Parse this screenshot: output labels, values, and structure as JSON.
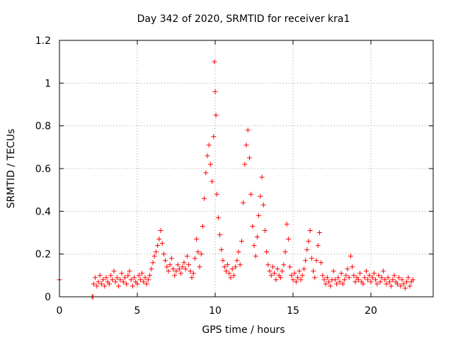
{
  "chart_data": {
    "type": "scatter",
    "title": "Day 342 of 2020, SRMTID for receiver kra1",
    "xlabel": "GPS time / hours",
    "ylabel": "SRMTID / TECUs",
    "xlim": [
      0,
      24
    ],
    "ylim": [
      0,
      1.2
    ],
    "xticks": [
      0,
      5,
      10,
      15,
      20
    ],
    "xtick_labels": [
      "0",
      "5",
      "10",
      "15",
      "20"
    ],
    "yticks": [
      0,
      0.2,
      0.4,
      0.6,
      0.8,
      1.0,
      1.2
    ],
    "ytick_labels": [
      "0",
      "0.2",
      "0.4",
      "0.6",
      "0.8",
      "1",
      "1.2"
    ],
    "grid": true,
    "marker": "+",
    "color": "#ff0000",
    "series": [
      {
        "name": "SRMTID",
        "points": [
          [
            0.0,
            0.08
          ],
          [
            2.1,
            0.0
          ],
          [
            2.15,
            0.0
          ],
          [
            2.2,
            0.06
          ],
          [
            2.3,
            0.09
          ],
          [
            2.4,
            0.05
          ],
          [
            2.5,
            0.07
          ],
          [
            2.6,
            0.1
          ],
          [
            2.7,
            0.06
          ],
          [
            2.8,
            0.08
          ],
          [
            2.9,
            0.05
          ],
          [
            3.0,
            0.09
          ],
          [
            3.1,
            0.07
          ],
          [
            3.2,
            0.06
          ],
          [
            3.3,
            0.1
          ],
          [
            3.4,
            0.08
          ],
          [
            3.5,
            0.12
          ],
          [
            3.6,
            0.07
          ],
          [
            3.7,
            0.09
          ],
          [
            3.8,
            0.05
          ],
          [
            3.9,
            0.08
          ],
          [
            4.0,
            0.11
          ],
          [
            4.1,
            0.07
          ],
          [
            4.2,
            0.09
          ],
          [
            4.3,
            0.06
          ],
          [
            4.4,
            0.1
          ],
          [
            4.5,
            0.12
          ],
          [
            4.6,
            0.08
          ],
          [
            4.7,
            0.05
          ],
          [
            4.8,
            0.09
          ],
          [
            4.9,
            0.07
          ],
          [
            5.0,
            0.06
          ],
          [
            5.1,
            0.1
          ],
          [
            5.2,
            0.08
          ],
          [
            5.3,
            0.11
          ],
          [
            5.4,
            0.07
          ],
          [
            5.5,
            0.09
          ],
          [
            5.6,
            0.06
          ],
          [
            5.7,
            0.08
          ],
          [
            5.8,
            0.1
          ],
          [
            5.9,
            0.13
          ],
          [
            6.0,
            0.16
          ],
          [
            6.1,
            0.19
          ],
          [
            6.2,
            0.21
          ],
          [
            6.3,
            0.24
          ],
          [
            6.4,
            0.27
          ],
          [
            6.5,
            0.31
          ],
          [
            6.6,
            0.25
          ],
          [
            6.7,
            0.2
          ],
          [
            6.8,
            0.17
          ],
          [
            6.9,
            0.14
          ],
          [
            7.0,
            0.12
          ],
          [
            7.1,
            0.15
          ],
          [
            7.2,
            0.18
          ],
          [
            7.3,
            0.13
          ],
          [
            7.4,
            0.1
          ],
          [
            7.5,
            0.12
          ],
          [
            7.6,
            0.15
          ],
          [
            7.7,
            0.13
          ],
          [
            7.8,
            0.11
          ],
          [
            7.9,
            0.14
          ],
          [
            8.0,
            0.16
          ],
          [
            8.1,
            0.13
          ],
          [
            8.2,
            0.19
          ],
          [
            8.3,
            0.15
          ],
          [
            8.4,
            0.12
          ],
          [
            8.5,
            0.09
          ],
          [
            8.6,
            0.11
          ],
          [
            8.7,
            0.18
          ],
          [
            8.8,
            0.27
          ],
          [
            8.9,
            0.21
          ],
          [
            9.0,
            0.14
          ],
          [
            9.1,
            0.2
          ],
          [
            9.2,
            0.33
          ],
          [
            9.3,
            0.46
          ],
          [
            9.4,
            0.58
          ],
          [
            9.5,
            0.66
          ],
          [
            9.6,
            0.71
          ],
          [
            9.7,
            0.62
          ],
          [
            9.8,
            0.54
          ],
          [
            9.9,
            0.75
          ],
          [
            9.95,
            1.1
          ],
          [
            10.0,
            0.96
          ],
          [
            10.05,
            0.85
          ],
          [
            10.1,
            0.48
          ],
          [
            10.2,
            0.37
          ],
          [
            10.3,
            0.29
          ],
          [
            10.4,
            0.22
          ],
          [
            10.5,
            0.17
          ],
          [
            10.6,
            0.14
          ],
          [
            10.7,
            0.12
          ],
          [
            10.8,
            0.15
          ],
          [
            10.9,
            0.11
          ],
          [
            11.0,
            0.09
          ],
          [
            11.1,
            0.13
          ],
          [
            11.2,
            0.1
          ],
          [
            11.3,
            0.14
          ],
          [
            11.4,
            0.17
          ],
          [
            11.5,
            0.21
          ],
          [
            11.6,
            0.15
          ],
          [
            11.7,
            0.26
          ],
          [
            11.8,
            0.44
          ],
          [
            11.9,
            0.62
          ],
          [
            12.0,
            0.71
          ],
          [
            12.1,
            0.78
          ],
          [
            12.2,
            0.65
          ],
          [
            12.3,
            0.48
          ],
          [
            12.4,
            0.33
          ],
          [
            12.5,
            0.24
          ],
          [
            12.6,
            0.19
          ],
          [
            12.7,
            0.28
          ],
          [
            12.8,
            0.38
          ],
          [
            12.9,
            0.47
          ],
          [
            13.0,
            0.56
          ],
          [
            13.1,
            0.43
          ],
          [
            13.2,
            0.31
          ],
          [
            13.3,
            0.21
          ],
          [
            13.4,
            0.15
          ],
          [
            13.5,
            0.12
          ],
          [
            13.6,
            0.1
          ],
          [
            13.7,
            0.14
          ],
          [
            13.8,
            0.11
          ],
          [
            13.9,
            0.08
          ],
          [
            14.0,
            0.13
          ],
          [
            14.1,
            0.1
          ],
          [
            14.2,
            0.09
          ],
          [
            14.3,
            0.12
          ],
          [
            14.4,
            0.15
          ],
          [
            14.5,
            0.21
          ],
          [
            14.6,
            0.34
          ],
          [
            14.7,
            0.27
          ],
          [
            14.8,
            0.14
          ],
          [
            14.9,
            0.1
          ],
          [
            15.0,
            0.08
          ],
          [
            15.1,
            0.11
          ],
          [
            15.2,
            0.07
          ],
          [
            15.3,
            0.09
          ],
          [
            15.4,
            0.12
          ],
          [
            15.5,
            0.08
          ],
          [
            15.6,
            0.1
          ],
          [
            15.7,
            0.13
          ],
          [
            15.8,
            0.17
          ],
          [
            15.9,
            0.22
          ],
          [
            16.0,
            0.26
          ],
          [
            16.1,
            0.31
          ],
          [
            16.2,
            0.18
          ],
          [
            16.3,
            0.12
          ],
          [
            16.4,
            0.09
          ],
          [
            16.5,
            0.17
          ],
          [
            16.6,
            0.24
          ],
          [
            16.7,
            0.3
          ],
          [
            16.8,
            0.16
          ],
          [
            16.9,
            0.1
          ],
          [
            17.0,
            0.08
          ],
          [
            17.1,
            0.06
          ],
          [
            17.2,
            0.09
          ],
          [
            17.3,
            0.07
          ],
          [
            17.4,
            0.05
          ],
          [
            17.5,
            0.08
          ],
          [
            17.6,
            0.12
          ],
          [
            17.7,
            0.08
          ],
          [
            17.8,
            0.06
          ],
          [
            17.9,
            0.09
          ],
          [
            18.0,
            0.07
          ],
          [
            18.1,
            0.11
          ],
          [
            18.2,
            0.06
          ],
          [
            18.3,
            0.08
          ],
          [
            18.4,
            0.1
          ],
          [
            18.5,
            0.13
          ],
          [
            18.6,
            0.09
          ],
          [
            18.7,
            0.19
          ],
          [
            18.8,
            0.14
          ],
          [
            18.9,
            0.1
          ],
          [
            19.0,
            0.07
          ],
          [
            19.1,
            0.09
          ],
          [
            19.2,
            0.08
          ],
          [
            19.3,
            0.11
          ],
          [
            19.4,
            0.07
          ],
          [
            19.5,
            0.06
          ],
          [
            19.6,
            0.09
          ],
          [
            19.7,
            0.12
          ],
          [
            19.8,
            0.08
          ],
          [
            19.9,
            0.1
          ],
          [
            20.0,
            0.07
          ],
          [
            20.1,
            0.09
          ],
          [
            20.2,
            0.11
          ],
          [
            20.3,
            0.08
          ],
          [
            20.4,
            0.06
          ],
          [
            20.5,
            0.1
          ],
          [
            20.6,
            0.07
          ],
          [
            20.7,
            0.09
          ],
          [
            20.8,
            0.12
          ],
          [
            20.9,
            0.08
          ],
          [
            21.0,
            0.06
          ],
          [
            21.1,
            0.09
          ],
          [
            21.2,
            0.07
          ],
          [
            21.3,
            0.05
          ],
          [
            21.4,
            0.08
          ],
          [
            21.5,
            0.1
          ],
          [
            21.6,
            0.07
          ],
          [
            21.7,
            0.06
          ],
          [
            21.8,
            0.09
          ],
          [
            21.9,
            0.05
          ],
          [
            22.0,
            0.08
          ],
          [
            22.1,
            0.06
          ],
          [
            22.2,
            0.04
          ],
          [
            22.3,
            0.07
          ],
          [
            22.4,
            0.09
          ],
          [
            22.5,
            0.05
          ],
          [
            22.6,
            0.07
          ],
          [
            22.7,
            0.08
          ]
        ]
      }
    ]
  }
}
